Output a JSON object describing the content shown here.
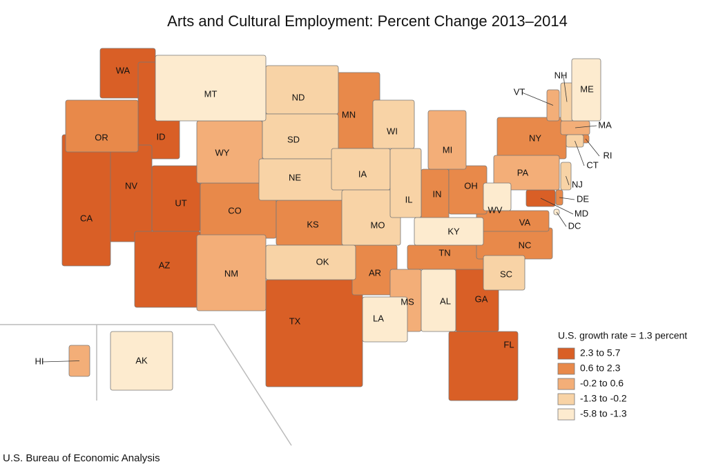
{
  "title": "Arts and Cultural Employment: Percent Change 2013–2014",
  "source": "U.S. Bureau of Economic Analysis",
  "legend": {
    "title": "U.S. growth rate = 1.3 percent",
    "classes": [
      {
        "label": "2.3 to 5.7",
        "color": "#d95f26",
        "states": [
          "WA",
          "ID",
          "NV",
          "UT",
          "CA",
          "AZ",
          "TX",
          "GA",
          "FL",
          "MD"
        ]
      },
      {
        "label": "0.6 to 2.3",
        "color": "#e8894a",
        "states": [
          "OR",
          "CO",
          "KS",
          "MN",
          "NY",
          "AR",
          "TN",
          "NC",
          "VA",
          "IN",
          "OH",
          "DE",
          "RI"
        ]
      },
      {
        "label": "-0.2 to 0.6",
        "color": "#f3ae78",
        "states": [
          "WY",
          "NM",
          "MI",
          "MS",
          "PA",
          "VT",
          "MA",
          "HI"
        ]
      },
      {
        "label": "-1.3 to -0.2",
        "color": "#f8d3a6",
        "states": [
          "ND",
          "SD",
          "NE",
          "IA",
          "WI",
          "MO",
          "IL",
          "OK",
          "SC",
          "CT",
          "NJ",
          "NH"
        ]
      },
      {
        "label": "-5.8 to -1.3",
        "color": "#fdebcf",
        "states": [
          "MT",
          "KY",
          "WV",
          "AL",
          "LA",
          "ME",
          "AK",
          "DC"
        ]
      }
    ]
  }
}
